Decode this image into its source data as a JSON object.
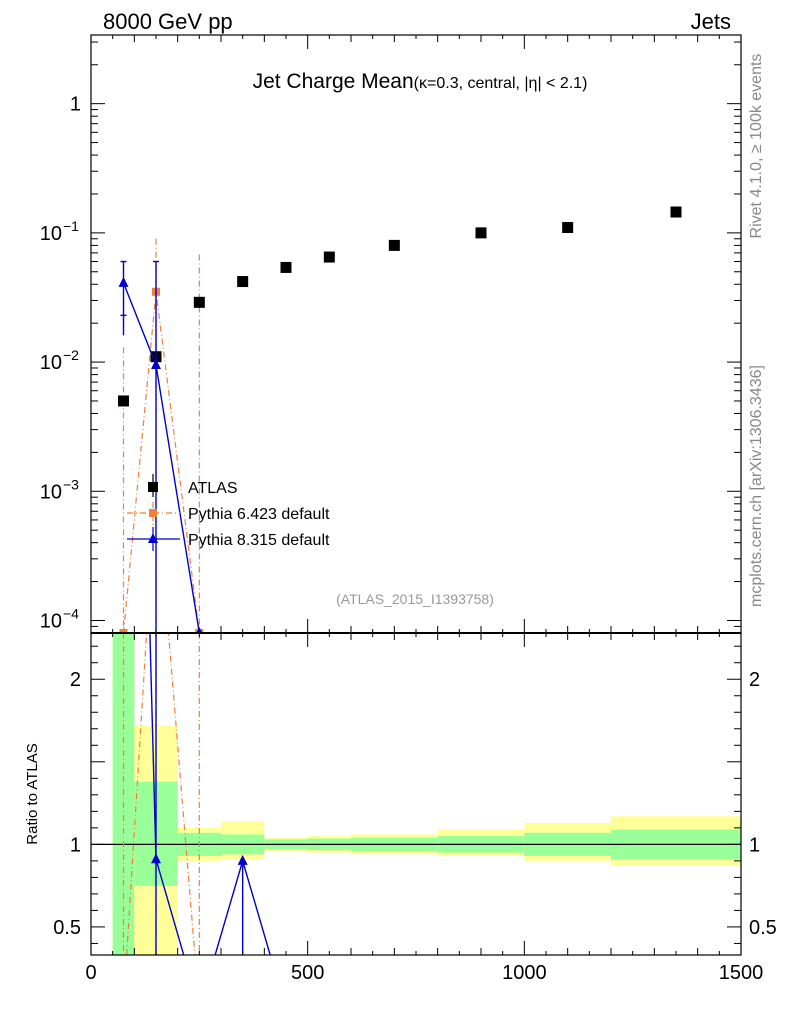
{
  "header": {
    "left": "8000 GeV pp",
    "right": "Jets"
  },
  "side_labels": {
    "top": "Rivet 4.1.0, ≥ 100k events",
    "bottom": "mcplots.cern.ch [arXiv:1306.3436]"
  },
  "chart_data": {
    "type": "scatter",
    "title": "Jet Charge Mean",
    "subtitle": "(κ=0.3, central, |η| < 2.1)",
    "watermark": "(ATLAS_2015_I1393758)",
    "xlim": [
      0,
      1500
    ],
    "ylim_main": [
      8e-05,
      3.4
    ],
    "yscale_main": "log",
    "ylabel_ratio": "Ratio to ATLAS",
    "ylim_ratio": [
      0.33,
      2.28
    ],
    "x_ticks": [
      0,
      500,
      1000,
      1500
    ],
    "y_ticks_main": [
      {
        "v": 0.0001,
        "base": "10",
        "exp": "−4"
      },
      {
        "v": 0.001,
        "base": "10",
        "exp": "−3"
      },
      {
        "v": 0.01,
        "base": "10",
        "exp": "−2"
      },
      {
        "v": 0.1,
        "base": "10",
        "exp": "−1"
      },
      {
        "v": 1,
        "base": "1",
        "exp": ""
      }
    ],
    "y_ticks_ratio": [
      {
        "v": 0.5,
        "label": "0.5"
      },
      {
        "v": 1,
        "label": "1"
      },
      {
        "v": 2,
        "label": "2"
      }
    ],
    "legend": [
      "ATLAS",
      "Pythia 6.423 default",
      "Pythia 8.315 default"
    ],
    "bins": [
      [
        50,
        100
      ],
      [
        100,
        200
      ],
      [
        200,
        300
      ],
      [
        300,
        400
      ],
      [
        400,
        500
      ],
      [
        500,
        600
      ],
      [
        600,
        800
      ],
      [
        800,
        1000
      ],
      [
        1000,
        1200
      ],
      [
        1200,
        1500
      ]
    ],
    "atlas": {
      "name": "ATLAS",
      "x": [
        75,
        150,
        250,
        350,
        450,
        550,
        700,
        900,
        1100,
        1350
      ],
      "y": [
        0.005,
        0.011,
        0.029,
        0.042,
        0.054,
        0.065,
        0.08,
        0.1,
        0.11,
        0.145
      ],
      "band_inner": [
        [
          0.15,
          2.4
        ],
        [
          0.75,
          1.38
        ],
        [
          0.93,
          1.07
        ],
        [
          0.94,
          1.06
        ],
        [
          0.97,
          1.03
        ],
        [
          0.965,
          1.035
        ],
        [
          0.96,
          1.04
        ],
        [
          0.95,
          1.05
        ],
        [
          0.93,
          1.07
        ],
        [
          0.91,
          1.09
        ]
      ],
      "band_outer": [
        [
          0.15,
          2.4
        ],
        [
          0.3,
          1.72
        ],
        [
          0.9,
          1.1
        ],
        [
          0.91,
          1.14
        ],
        [
          0.96,
          1.04
        ],
        [
          0.95,
          1.05
        ],
        [
          0.94,
          1.06
        ],
        [
          0.93,
          1.09
        ],
        [
          0.9,
          1.13
        ],
        [
          0.87,
          1.17
        ]
      ]
    },
    "pythia6": {
      "name": "Pythia 6.423 default",
      "color": "#f07f3c",
      "x": [
        75,
        150,
        250
      ],
      "y": [
        8e-05,
        0.035,
        8e-05
      ],
      "err_lo": [
        8e-05,
        8e-05,
        8e-05
      ],
      "err_hi": [
        0.013,
        0.09,
        0.068
      ],
      "ratio_x": [
        75,
        150,
        250
      ],
      "ratio_y": [
        0.016,
        3.2,
        0.003
      ]
    },
    "pythia8": {
      "name": "Pythia 8.315 default",
      "color": "#0000cc",
      "x": [
        75,
        150,
        250
      ],
      "y": [
        0.041,
        0.0095,
        8e-05
      ],
      "err_lo": [
        0.023,
        8e-05,
        8e-05
      ],
      "err_hi": [
        0.06,
        0.06,
        8e-05
      ],
      "ratio_x": [
        75,
        150,
        250,
        350,
        450
      ],
      "ratio_y": [
        8.2,
        0.91,
        0.003,
        0.9,
        0.003
      ]
    },
    "colors": {
      "band_inner": "#99ff99",
      "band_outer": "#ffff99",
      "atlas": "#000000"
    }
  }
}
